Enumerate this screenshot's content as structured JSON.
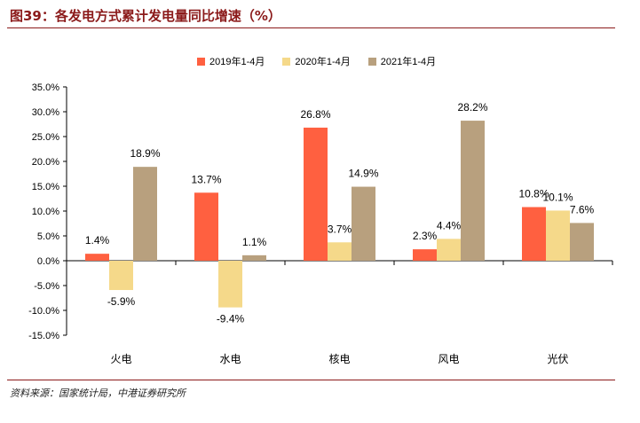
{
  "header": {
    "title": "图39：各发电方式累计发电量同比增速（%）"
  },
  "footer": {
    "source": "资料来源：国家统计局，中港证券研究所"
  },
  "colors": {
    "accent": "#8b1a1a",
    "series": [
      "#ff6040",
      "#f5d98a",
      "#b8a07e"
    ]
  },
  "chart_data": {
    "type": "bar",
    "categories": [
      "火电",
      "水电",
      "核电",
      "风电",
      "光伏"
    ],
    "series": [
      {
        "name": "2019年1-4月",
        "values": [
          1.4,
          13.7,
          26.8,
          2.3,
          10.8
        ],
        "labels": [
          "1.4%",
          "13.7%",
          "26.8%",
          "2.3%",
          "10.8%"
        ]
      },
      {
        "name": "2020年1-4月",
        "values": [
          -5.9,
          -9.4,
          3.7,
          4.4,
          10.1
        ],
        "labels": [
          "-5.9%",
          "-9.4%",
          "3.7%",
          "4.4%",
          "10.1%"
        ]
      },
      {
        "name": "2021年1-4月",
        "values": [
          18.9,
          1.1,
          14.9,
          28.2,
          7.6
        ],
        "labels": [
          "18.9%",
          "1.1%",
          "14.9%",
          "28.2%",
          "7.6%"
        ]
      }
    ],
    "ylim": [
      -15,
      35
    ],
    "yticks": [
      35,
      30,
      25,
      20,
      15,
      10,
      5,
      0,
      -5,
      -10,
      -15
    ],
    "ytick_labels": [
      "35.0%",
      "30.0%",
      "25.0%",
      "20.0%",
      "15.0%",
      "10.0%",
      "5.0%",
      "0.0%",
      "-5.0%",
      "-10.0%",
      "-15.0%"
    ],
    "grid": false,
    "legend": "top-center",
    "title": "",
    "xlabel": "",
    "ylabel": ""
  }
}
